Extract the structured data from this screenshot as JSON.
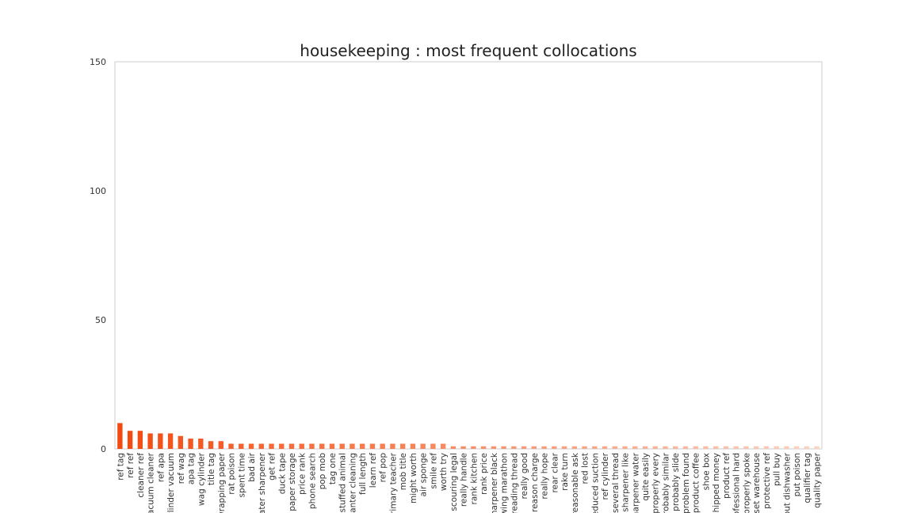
{
  "chart_data": {
    "type": "bar",
    "title": "housekeeping : most frequent collocations",
    "xlabel": "",
    "ylabel": "",
    "ylim": [
      0,
      150
    ],
    "yticks": [
      0,
      50,
      100,
      150
    ],
    "grid": false,
    "categories": [
      "ref tag",
      "ref ref",
      "cleaner ref",
      "vacuum cleaner",
      "ref apa",
      "cylinder vacuum",
      "ref wag",
      "apa tag",
      "wag cylinder",
      "title tag",
      "wrapping paper",
      "rat poison",
      "spent time",
      "bad air",
      "water sharpener",
      "get ref",
      "duck tape",
      "paper storage",
      "price rank",
      "phone search",
      "pop mob",
      "tag one",
      "stuffed animal",
      "planter cleaning",
      "full length",
      "learn ref",
      "ref pop",
      "primary teacher",
      "mob title",
      "might worth",
      "air sponge",
      "smile ref",
      "worth try",
      "scouring legal",
      "really handle",
      "rank kitchen",
      "rank price",
      "sharpener black",
      "sewing marathon",
      "reading thread",
      "really good",
      "reason charge",
      "really hope",
      "rear clear",
      "rake turn",
      "reasonable ask",
      "red lost",
      "reduced suction",
      "ref cylinder",
      "several thread",
      "sharpener like",
      "sharpener water",
      "quite easily",
      "properly every",
      "probably similar",
      "probably slide",
      "problem found",
      "product coffee",
      "shoe box",
      "shipped money",
      "product ref",
      "professional hard",
      "properly spoke",
      "set warehouse",
      "protective ref",
      "pull buy",
      "put dishwasher",
      "put poison",
      "qualifier tag",
      "quality paper"
    ],
    "values": [
      10,
      7,
      7,
      6,
      6,
      6,
      5,
      4,
      4,
      3,
      3,
      2,
      2,
      2,
      2,
      2,
      2,
      2,
      2,
      2,
      2,
      2,
      2,
      2,
      2,
      2,
      2,
      2,
      2,
      2,
      2,
      2,
      2,
      1,
      1,
      1,
      1,
      1,
      1,
      1,
      1,
      1,
      1,
      1,
      1,
      1,
      1,
      1,
      1,
      1,
      1,
      1,
      1,
      1,
      1,
      1,
      1,
      1,
      1,
      1,
      1,
      1,
      1,
      1,
      1,
      1,
      1,
      1,
      1,
      1
    ],
    "colors": {
      "bar_start": "#f34a10",
      "bar_end": "#fbd3c1",
      "frame": "#cccccc"
    }
  }
}
